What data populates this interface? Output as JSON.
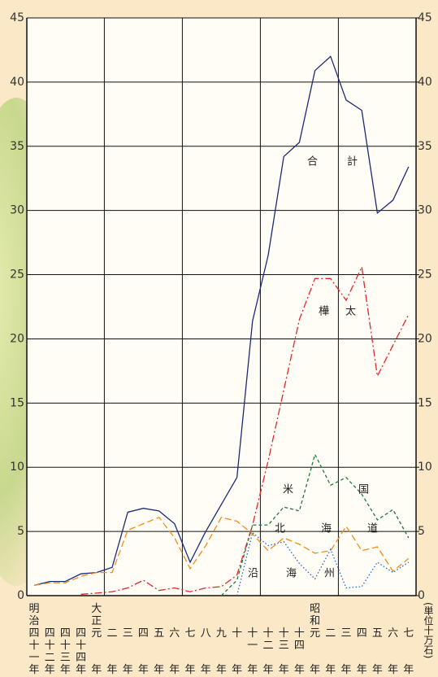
{
  "chart_data": {
    "type": "line",
    "categories": [
      "四十一",
      "四十二",
      "四十三",
      "四十四",
      "元",
      "二",
      "三",
      "四",
      "五",
      "六",
      "七",
      "八",
      "九",
      "十",
      "十一",
      "十二",
      "十三",
      "十四",
      "元",
      "二",
      "三",
      "四",
      "五",
      "六",
      "七"
    ],
    "era_labels": [
      {
        "index": 0,
        "label": "明治"
      },
      {
        "index": 4,
        "label": "大正"
      },
      {
        "index": 18,
        "label": "昭和"
      }
    ],
    "year_suffix": "年",
    "ylabel": "(単位十万石)",
    "ylim": [
      0,
      45
    ],
    "yticks": [
      0,
      5,
      10,
      15,
      20,
      25,
      30,
      35,
      40,
      45
    ],
    "y2lim": [
      0,
      45
    ],
    "y2ticks": [
      0,
      5,
      10,
      15,
      20,
      25,
      30,
      35,
      40,
      45
    ],
    "grid": true,
    "series": [
      {
        "name": "合計",
        "color": "#1c2a7a",
        "dash": "solid",
        "values": [
          0.8,
          1.1,
          1.1,
          1.7,
          1.8,
          2.2,
          6.5,
          6.8,
          6.6,
          5.6,
          2.6,
          5.0,
          7.1,
          9.2,
          21.4,
          26.5,
          34.2,
          35.3,
          40.9,
          42.0,
          38.6,
          37.8,
          29.8,
          30.8,
          33.4
        ]
      },
      {
        "name": "樺太",
        "color": "#e0282a",
        "dash": "dashdot",
        "values": [
          null,
          null,
          null,
          0.1,
          0.2,
          0.3,
          0.6,
          1.2,
          0.4,
          0.6,
          0.3,
          0.6,
          0.7,
          1.6,
          5.5,
          10.5,
          16.0,
          21.5,
          24.7,
          24.7,
          23.0,
          25.6,
          17.1,
          19.5,
          21.9
        ]
      },
      {
        "name": "北海道",
        "color": "#f08c1a",
        "dash": "dashed",
        "values": [
          0.8,
          1.0,
          1.0,
          1.5,
          1.8,
          1.8,
          5.1,
          5.6,
          6.1,
          4.5,
          2.1,
          3.9,
          6.1,
          5.8,
          4.8,
          3.5,
          4.5,
          4.0,
          3.3,
          3.5,
          5.4,
          3.5,
          3.8,
          1.9,
          2.9
        ]
      },
      {
        "name": "米国",
        "color": "#1f7a3a",
        "dash": "shortdash",
        "values": [
          null,
          null,
          null,
          null,
          null,
          null,
          null,
          null,
          null,
          null,
          null,
          null,
          0.0,
          1.2,
          5.5,
          5.5,
          6.9,
          6.6,
          11.0,
          8.6,
          9.2,
          7.9,
          5.9,
          6.7,
          4.5
        ]
      },
      {
        "name": "沿海州",
        "color": "#1a6fc8",
        "dash": "dotted",
        "values": [
          null,
          null,
          null,
          null,
          null,
          null,
          null,
          null,
          null,
          null,
          null,
          null,
          null,
          0.0,
          4.9,
          3.9,
          4.2,
          2.5,
          1.3,
          3.6,
          0.6,
          0.7,
          2.6,
          1.8,
          2.6
        ]
      }
    ]
  }
}
